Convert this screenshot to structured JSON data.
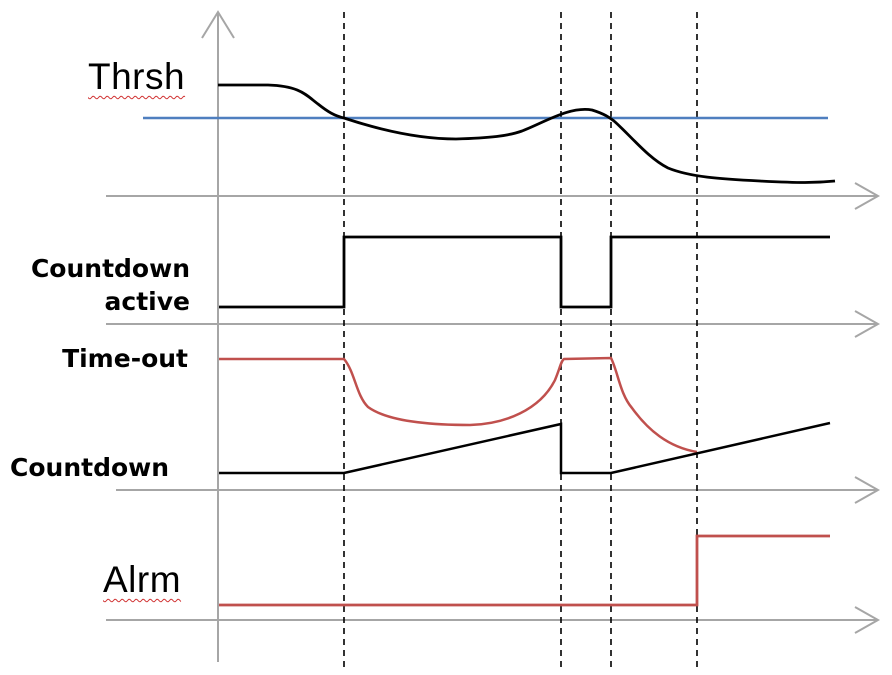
{
  "labels": {
    "threshold": "Thrsh",
    "countdown_active_line1": "Countdown",
    "countdown_active_line2": "active",
    "timeout": "Time-out",
    "countdown": "Countdown",
    "alarm": "Alrm"
  },
  "colors": {
    "signal": "#000000",
    "threshold_line": "#4f7fbf",
    "timeout_curve": "#c0504d",
    "alarm_line": "#c0504d",
    "axis": "#a6a6a6",
    "event_marker": "#000000",
    "spellcheck_underline": "#d03030"
  }
}
